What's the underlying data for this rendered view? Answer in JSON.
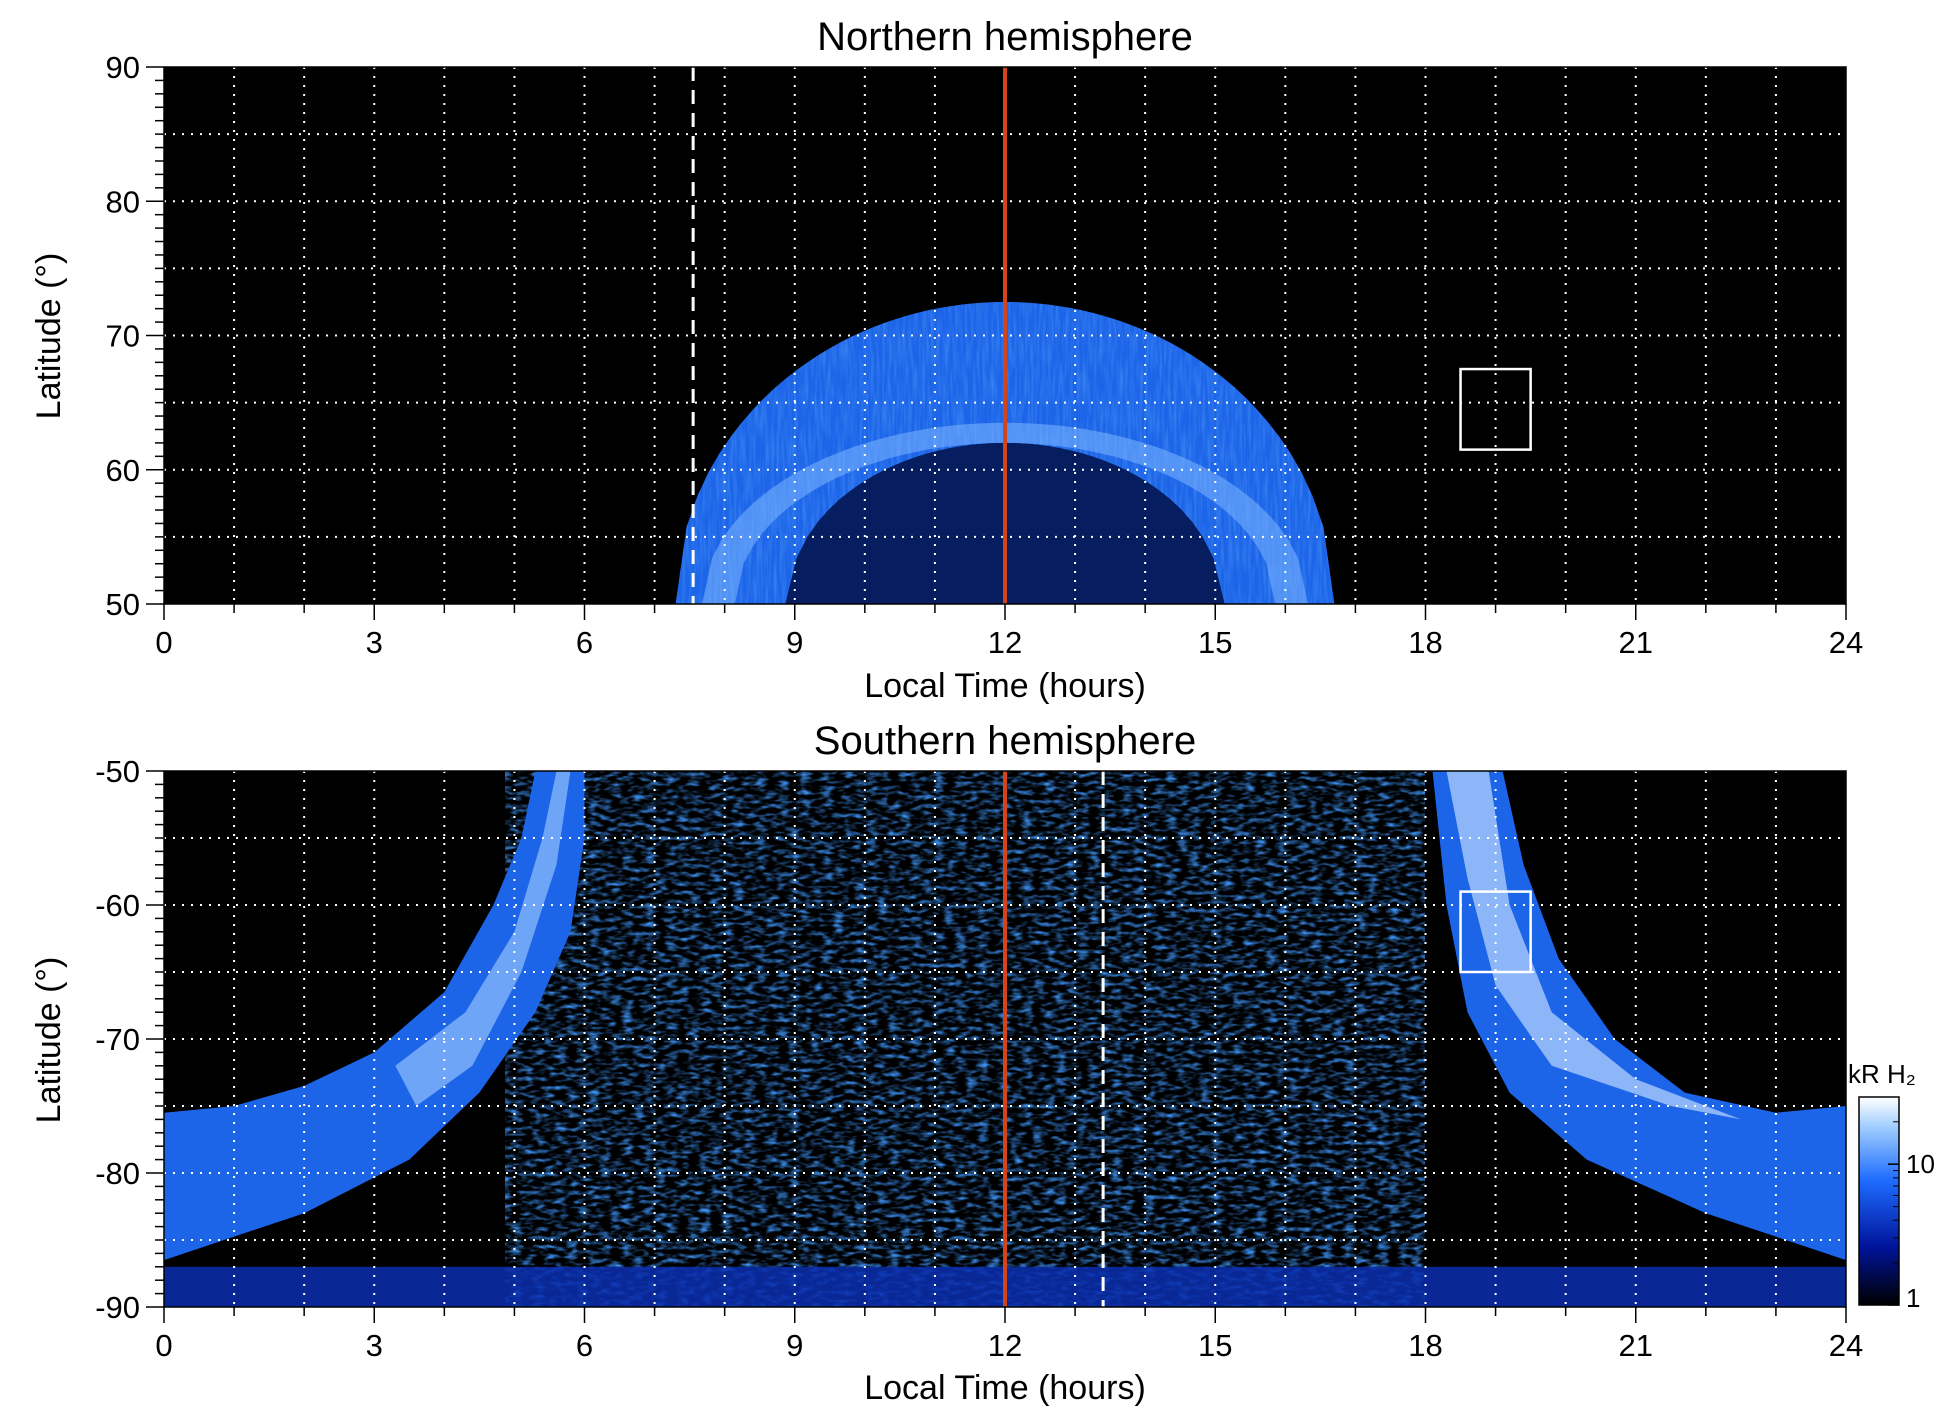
{
  "chart_data": [
    {
      "type": "heatmap",
      "panel": "north",
      "title": "Northern hemisphere",
      "xlabel": "Local Time (hours)",
      "ylabel": "Latitude (°)",
      "xlim": [
        0,
        24
      ],
      "ylim": [
        50,
        90
      ],
      "xticks": [
        "0",
        "3",
        "6",
        "9",
        "12",
        "15",
        "18",
        "21",
        "24"
      ],
      "xtick_values": [
        0,
        3,
        6,
        9,
        12,
        15,
        18,
        21,
        24
      ],
      "yticks": [
        "50",
        "60",
        "70",
        "80",
        "90"
      ],
      "ytick_values": [
        50,
        60,
        70,
        80,
        90
      ],
      "grid": true,
      "grid_x_step": 1,
      "grid_y_step": 5,
      "reference_line_lt": 12,
      "reference_line_color": "#d2441c",
      "dashed_line_lt": 7.55,
      "box_lt": [
        18.5,
        19.5
      ],
      "box_lat": [
        61.5,
        67.5
      ],
      "oval_center_lt": 12,
      "oval_halfwidth_hours": 4.7,
      "oval_lat_inner_at_noon": 62,
      "oval_lat_outer_at_noon": 72.5
    },
    {
      "type": "heatmap",
      "panel": "south",
      "title": "Southern hemisphere",
      "xlabel": "Local Time (hours)",
      "ylabel": "Latitude (°)",
      "xlim": [
        0,
        24
      ],
      "ylim": [
        -90,
        -50
      ],
      "xticks": [
        "0",
        "3",
        "6",
        "9",
        "12",
        "15",
        "18",
        "21",
        "24"
      ],
      "xtick_values": [
        0,
        3,
        6,
        9,
        12,
        15,
        18,
        21,
        24
      ],
      "yticks": [
        "-50",
        "-60",
        "-70",
        "-80",
        "-90"
      ],
      "ytick_values": [
        -50,
        -60,
        -70,
        -80,
        -90
      ],
      "grid": true,
      "grid_x_step": 1,
      "grid_y_step": 5,
      "reference_line_lt": 12,
      "reference_line_color": "#d2441c",
      "dashed_line_lt": 13.4,
      "box_lt": [
        18.5,
        19.5
      ],
      "box_lat": [
        -65,
        -59
      ],
      "colorbar": {
        "label": "kR H₂",
        "ticks": [
          "1",
          "10"
        ],
        "tick_values": [
          1,
          10
        ],
        "range": [
          1,
          30
        ],
        "scale": "log",
        "colors": [
          "#000000",
          "#00149a",
          "#1e6cff",
          "#9dcbff",
          "#ffffff"
        ]
      }
    }
  ]
}
